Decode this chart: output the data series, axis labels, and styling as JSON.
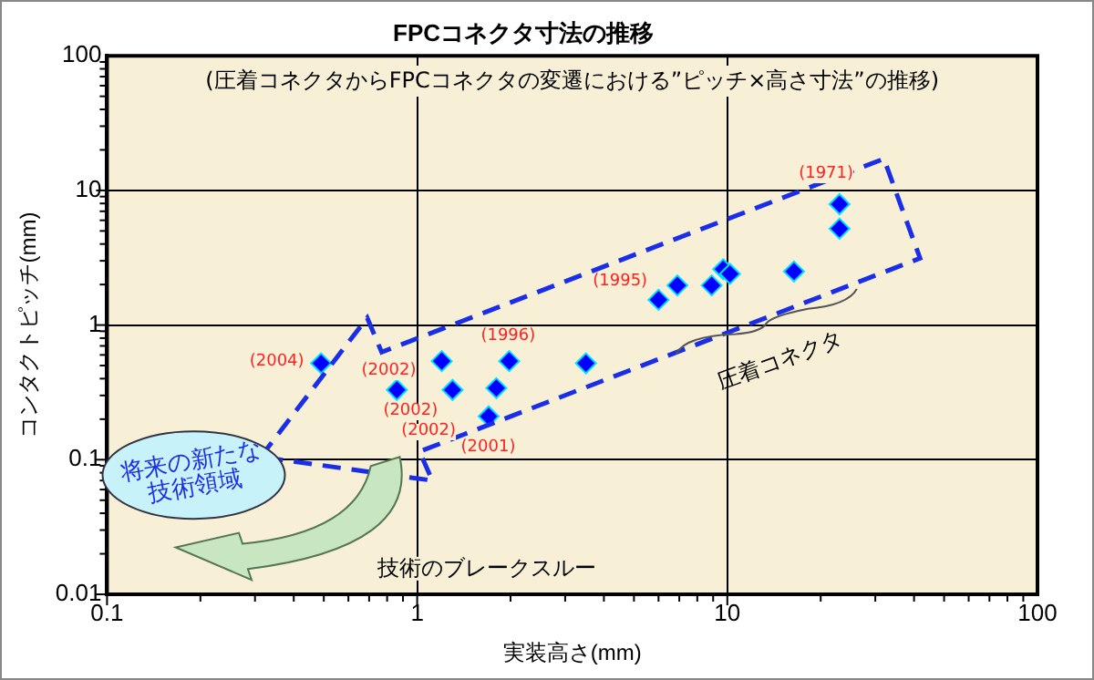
{
  "chart_data": {
    "type": "scatter",
    "title": "FPCコネクタ寸法の推移",
    "subtitle": "(圧着コネクタからFPCコネクタの変遷における”ピッチ×高さ寸法”の推移)",
    "xlabel": "実装高さ(mm)",
    "ylabel": "コンタクトピッチ(mm)",
    "series": [
      {
        "color": "#0000ff",
        "x": [
          0.49,
          0.86,
          1.2,
          1.3,
          1.98,
          1.8,
          1.7,
          3.5,
          6.0,
          6.9,
          8.9,
          9.7,
          10.2,
          16.4,
          23,
          23
        ],
        "values": [
          0.52,
          0.33,
          0.54,
          0.33,
          0.54,
          0.34,
          0.21,
          0.52,
          1.54,
          1.97,
          1.97,
          2.6,
          2.4,
          2.5,
          7.9,
          5.2
        ]
      }
    ],
    "xlim": [
      0.1,
      100
    ],
    "ylim": [
      0.01,
      100
    ],
    "xticks": [
      0.1,
      1,
      10,
      100
    ],
    "yticks": [
      0.01,
      0.1,
      1,
      10,
      100
    ],
    "log": "xy",
    "grid": true,
    "legend": false,
    "marker": "diamond",
    "annotations": [
      "(2004)",
      "(2002)",
      "(2002)",
      "(2002)",
      "(2001)",
      "(1996)",
      "(1995)",
      "(1971)",
      "将来の新たな技術領域",
      "圧着コネクタ",
      "技術のブレークスルー"
    ]
  }
}
